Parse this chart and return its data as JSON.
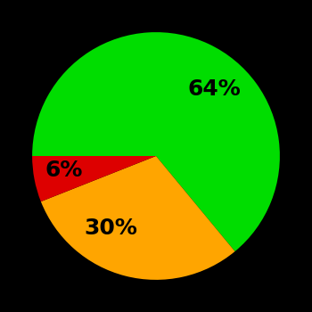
{
  "slices": [
    64,
    30,
    6
  ],
  "colors": [
    "#00dd00",
    "#ffa500",
    "#dd0000"
  ],
  "labels": [
    "64%",
    "30%",
    "6%"
  ],
  "label_colors": [
    "black",
    "black",
    "black"
  ],
  "background_color": "#000000",
  "startangle": 180,
  "label_fontsize": 18,
  "label_fontweight": "bold",
  "label_distance": 0.6
}
